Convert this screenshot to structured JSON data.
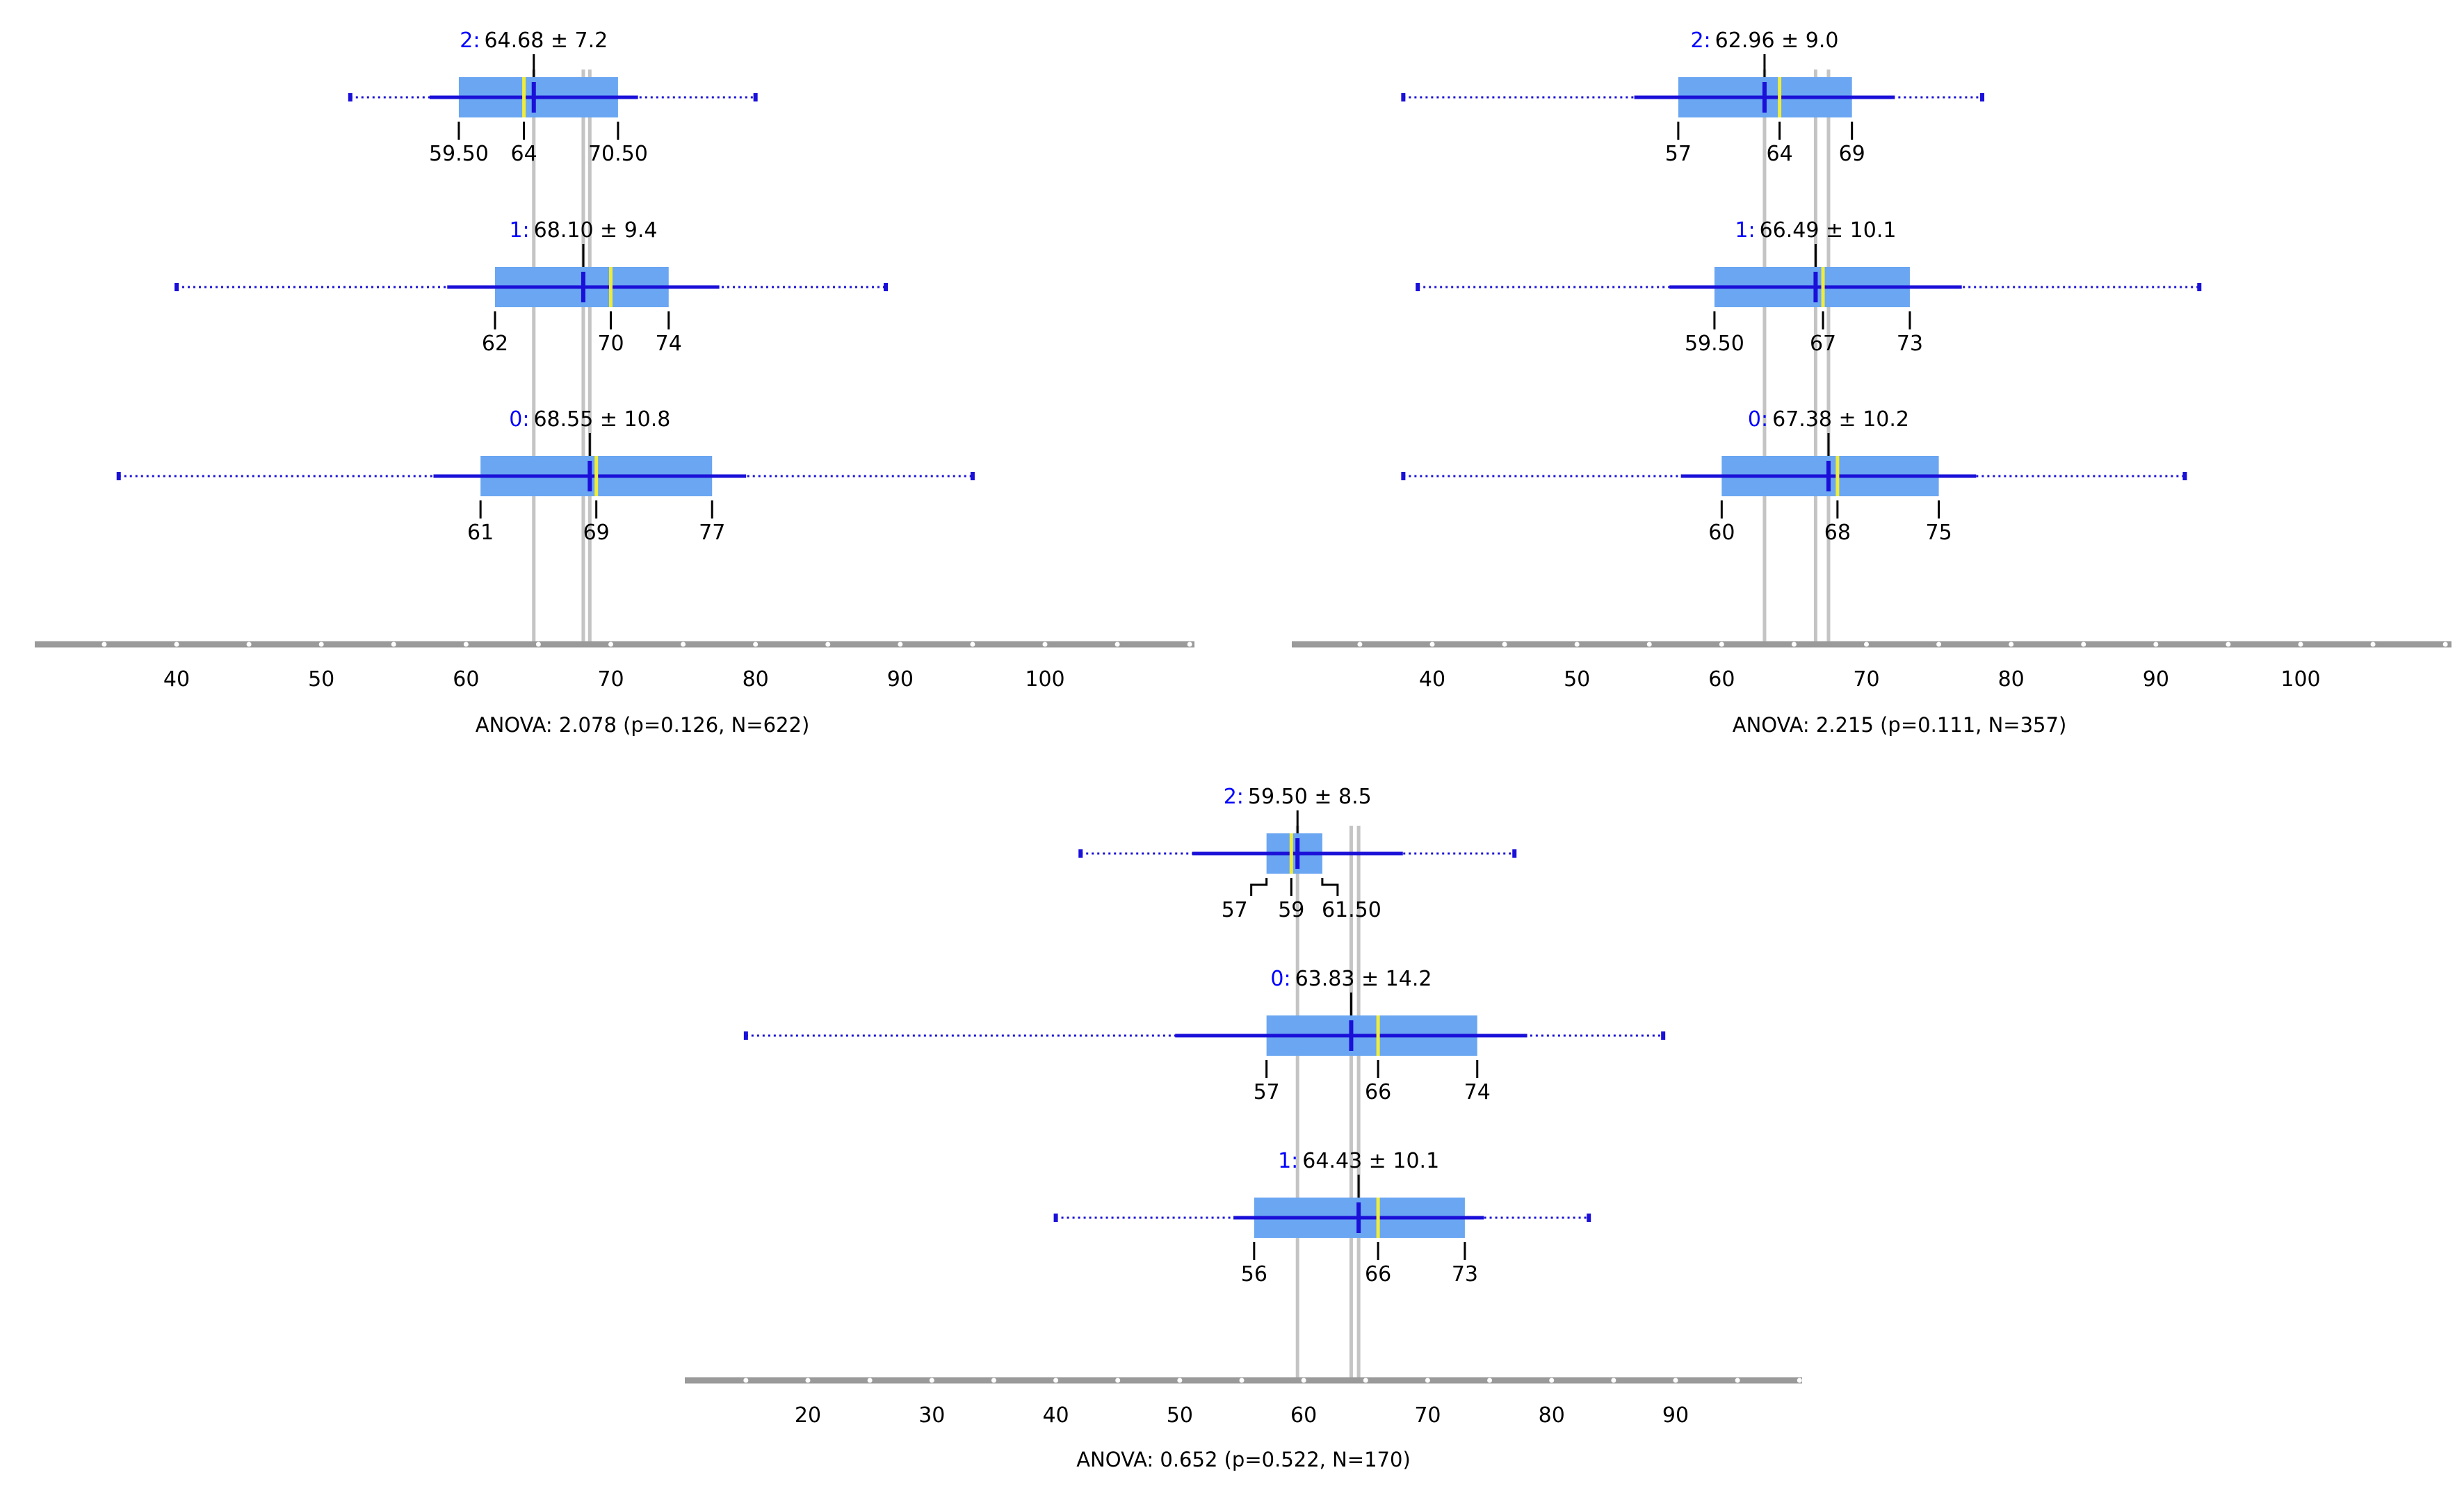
{
  "chart_data": [
    {
      "type": "box",
      "title": "",
      "xticks": [
        40,
        50,
        60,
        70,
        80,
        90,
        100
      ],
      "xlim": [
        30,
        110
      ],
      "anova_label": "ANOVA: 2.078 (p=0.126, N=622)",
      "groups": [
        {
          "name": "2",
          "summary": "64.68 ± 7.2",
          "mean": 64.68,
          "sd": 7.2,
          "min": 52,
          "max": 80,
          "q1": 59.5,
          "median": 64,
          "q3": 70.5,
          "tick_labels": [
            "59.50",
            "64",
            "70.50"
          ]
        },
        {
          "name": "1",
          "summary": "68.10 ± 9.4",
          "mean": 68.1,
          "sd": 9.4,
          "min": 40,
          "max": 89,
          "q1": 62,
          "median": 70,
          "q3": 74,
          "tick_labels": [
            "62",
            "70",
            "74"
          ]
        },
        {
          "name": "0",
          "summary": "68.55 ± 10.8",
          "mean": 68.55,
          "sd": 10.8,
          "min": 36,
          "max": 95,
          "q1": 61,
          "median": 69,
          "q3": 77,
          "tick_labels": [
            "61",
            "69",
            "77"
          ]
        }
      ]
    },
    {
      "type": "box",
      "title": "",
      "xticks": [
        40,
        50,
        60,
        70,
        80,
        90,
        100
      ],
      "xlim": [
        30,
        110
      ],
      "anova_label": "ANOVA: 2.215 (p=0.111, N=357)",
      "groups": [
        {
          "name": "2",
          "summary": "62.96 ± 9.0",
          "mean": 62.96,
          "sd": 9.0,
          "min": 38,
          "max": 78,
          "q1": 57,
          "median": 64,
          "q3": 69,
          "tick_labels": [
            "57",
            "64",
            "69"
          ]
        },
        {
          "name": "1",
          "summary": "66.49 ± 10.1",
          "mean": 66.49,
          "sd": 10.1,
          "min": 39,
          "max": 93,
          "q1": 59.5,
          "median": 67,
          "q3": 73,
          "tick_labels": [
            "59.50",
            "67",
            "73"
          ]
        },
        {
          "name": "0",
          "summary": "67.38 ± 10.2",
          "mean": 67.38,
          "sd": 10.2,
          "min": 38,
          "max": 92,
          "q1": 60,
          "median": 68,
          "q3": 75,
          "tick_labels": [
            "60",
            "68",
            "75"
          ]
        }
      ]
    },
    {
      "type": "box",
      "title": "",
      "xticks": [
        20,
        30,
        40,
        50,
        60,
        70,
        80,
        90
      ],
      "xlim": [
        10,
        100
      ],
      "anova_label": "ANOVA: 0.652 (p=0.522, N=170)",
      "groups": [
        {
          "name": "2",
          "summary": "59.50 ± 8.5",
          "mean": 59.5,
          "sd": 8.5,
          "min": 42,
          "max": 77,
          "q1": 57,
          "median": 59,
          "q3": 61.5,
          "tick_labels": [
            "57",
            "59",
            "61.50"
          ]
        },
        {
          "name": "0",
          "summary": "63.83 ± 14.2",
          "mean": 63.83,
          "sd": 14.2,
          "min": 15,
          "max": 89,
          "q1": 57,
          "median": 66,
          "q3": 74,
          "tick_labels": [
            "57",
            "66",
            "74"
          ]
        },
        {
          "name": "1",
          "summary": "64.43 ± 10.1",
          "mean": 64.43,
          "sd": 10.1,
          "min": 40,
          "max": 83,
          "q1": 56,
          "median": 66,
          "q3": 73,
          "tick_labels": [
            "56",
            "66",
            "73"
          ]
        }
      ]
    }
  ],
  "colors": {
    "box_fill": "#6aa6f2",
    "mean_line": "#1a10d8",
    "median_line": "#f0ec3a",
    "group_label": "#0000ff",
    "ref_line": "#c4c4c4",
    "axis": "#9a9a9a"
  }
}
